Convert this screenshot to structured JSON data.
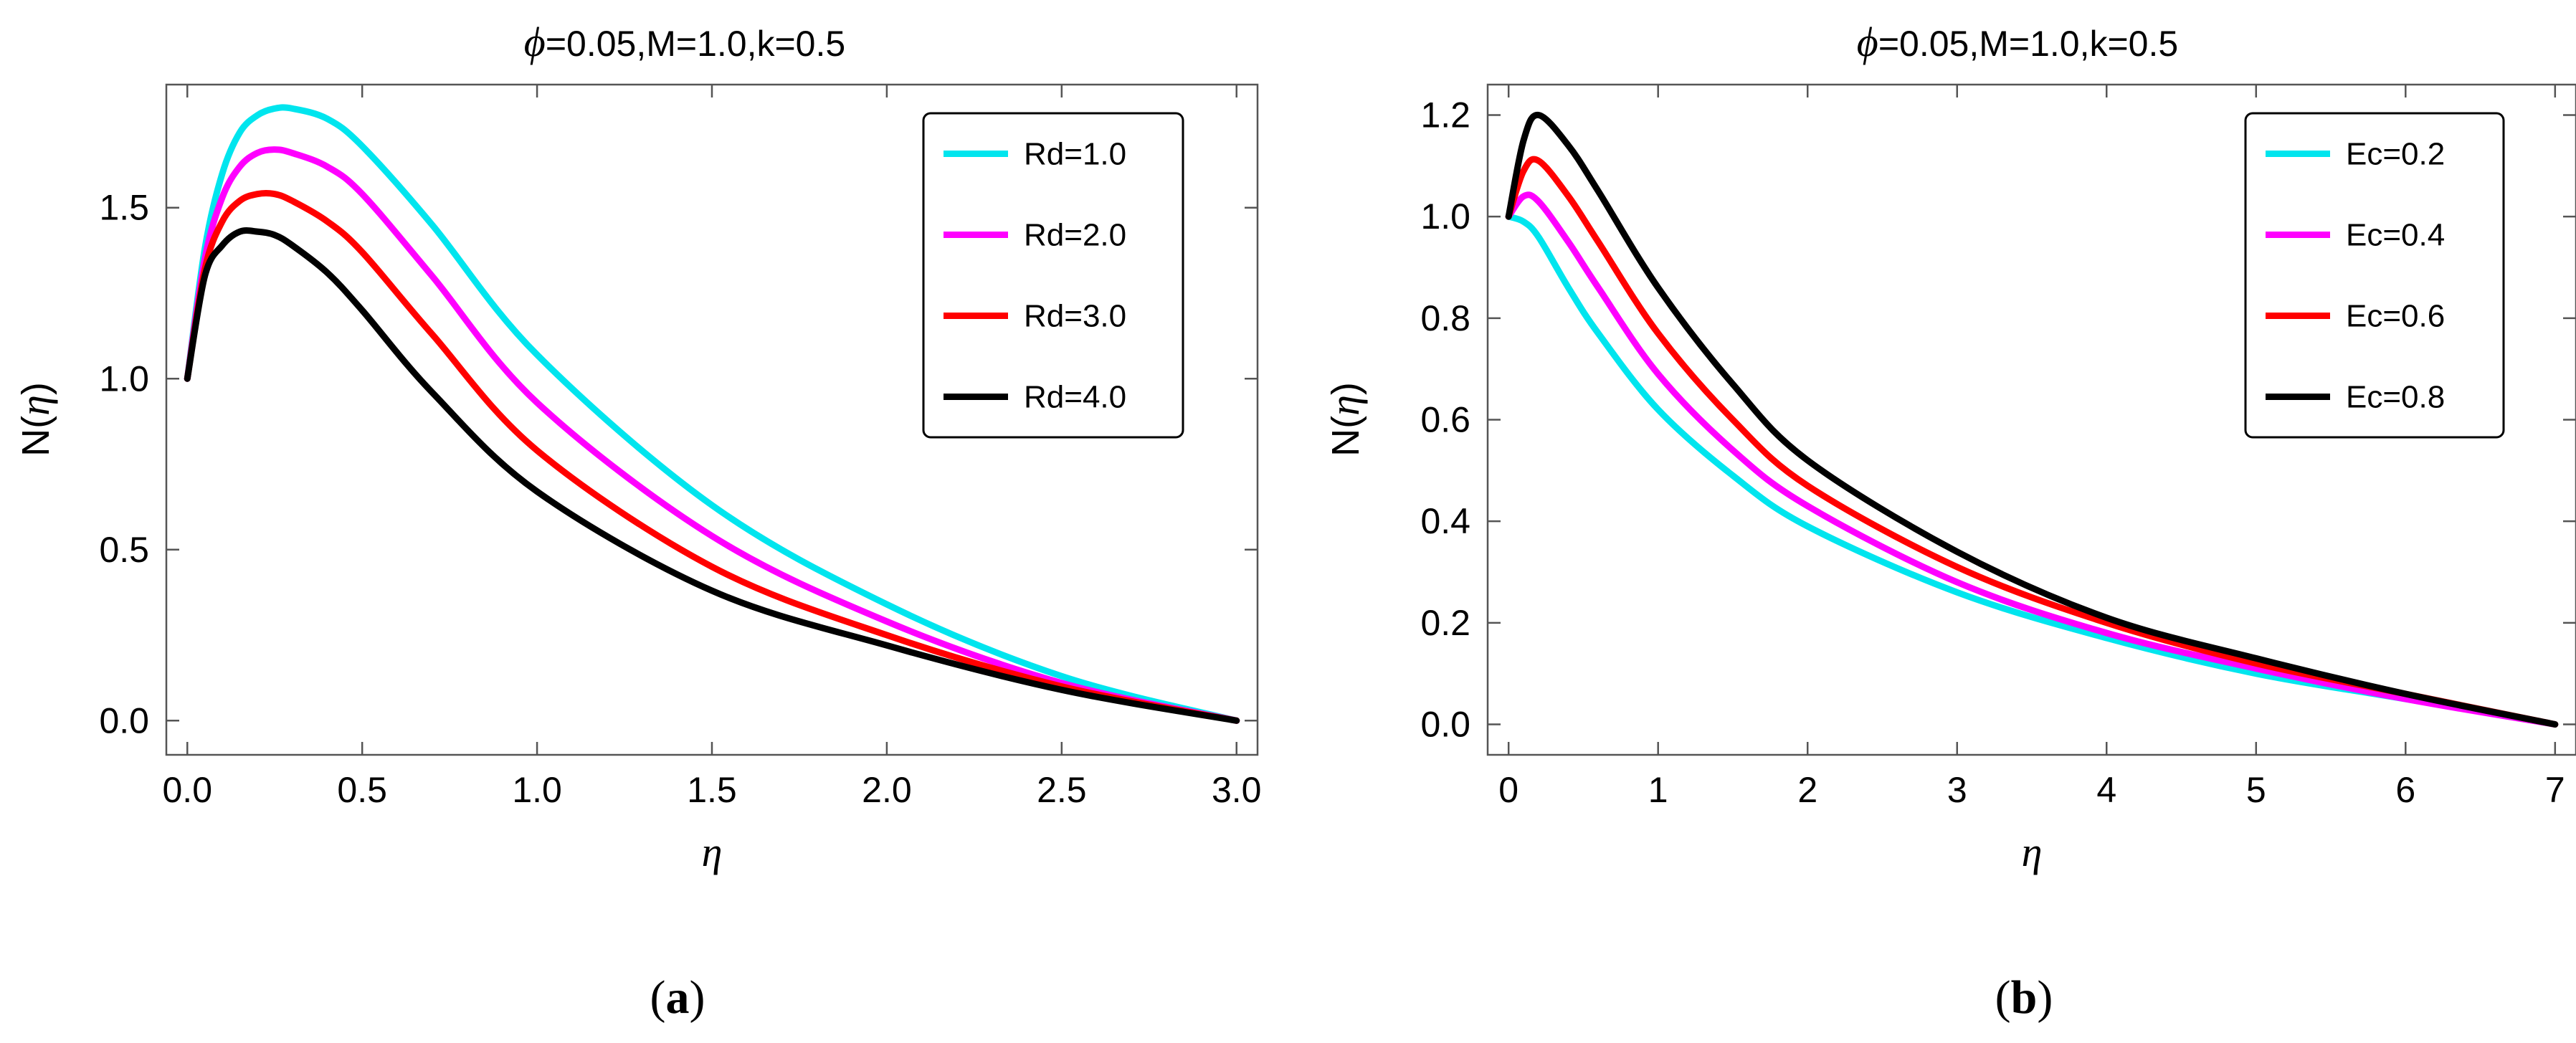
{
  "chart_data": [
    {
      "panel": "a",
      "type": "line",
      "panel_label_open": "(",
      "panel_label_letter": "a",
      "panel_label_close": ")",
      "title_symbol": "ϕ",
      "title_rest": "=0.05,M=1.0,k=0.5",
      "xlabel": "η",
      "ylabel_prefix": "N(",
      "ylabel_symbol": "η",
      "ylabel_suffix": ")",
      "xlim": [
        -0.06,
        3.06
      ],
      "ylim": [
        -0.1,
        1.86
      ],
      "xticks": [
        0.0,
        0.5,
        1.0,
        1.5,
        2.0,
        2.5,
        3.0
      ],
      "xtick_labels": [
        "0.0",
        "0.5",
        "1.0",
        "1.5",
        "2.0",
        "2.5",
        "3.0"
      ],
      "yticks": [
        0.0,
        0.5,
        1.0,
        1.5
      ],
      "ytick_labels": [
        "0.0",
        "0.5",
        "1.0",
        "1.5"
      ],
      "legend_position": "top-right",
      "series": [
        {
          "name": "Rd=1.0",
          "color": "#00e5ee",
          "x": [
            0.0,
            0.05,
            0.1,
            0.15,
            0.2,
            0.25,
            0.3,
            0.4,
            0.5,
            0.7,
            1.0,
            1.5,
            2.0,
            2.5,
            3.0
          ],
          "y": [
            1.0,
            1.38,
            1.6,
            1.72,
            1.77,
            1.79,
            1.79,
            1.76,
            1.68,
            1.45,
            1.07,
            0.63,
            0.34,
            0.13,
            0.0
          ]
        },
        {
          "name": "Rd=2.0",
          "color": "#ff00ff",
          "x": [
            0.0,
            0.05,
            0.1,
            0.15,
            0.2,
            0.25,
            0.3,
            0.4,
            0.5,
            0.7,
            1.0,
            1.5,
            2.0,
            2.5,
            3.0
          ],
          "y": [
            1.0,
            1.35,
            1.53,
            1.62,
            1.66,
            1.67,
            1.66,
            1.62,
            1.54,
            1.3,
            0.93,
            0.54,
            0.29,
            0.11,
            0.0
          ]
        },
        {
          "name": "Rd=3.0",
          "color": "#ff0000",
          "x": [
            0.0,
            0.05,
            0.1,
            0.15,
            0.2,
            0.25,
            0.3,
            0.4,
            0.5,
            0.7,
            1.0,
            1.5,
            2.0,
            2.5,
            3.0
          ],
          "y": [
            1.0,
            1.32,
            1.46,
            1.52,
            1.54,
            1.54,
            1.52,
            1.46,
            1.37,
            1.13,
            0.79,
            0.45,
            0.25,
            0.1,
            0.0
          ]
        },
        {
          "name": "Rd=4.0",
          "color": "#000000",
          "x": [
            0.0,
            0.05,
            0.1,
            0.15,
            0.2,
            0.25,
            0.3,
            0.4,
            0.5,
            0.7,
            1.0,
            1.5,
            2.0,
            2.5,
            3.0
          ],
          "y": [
            1.0,
            1.3,
            1.39,
            1.43,
            1.43,
            1.42,
            1.39,
            1.31,
            1.2,
            0.96,
            0.67,
            0.38,
            0.22,
            0.09,
            0.0
          ]
        }
      ]
    },
    {
      "panel": "b",
      "type": "line",
      "panel_label_open": "(",
      "panel_label_letter": "b",
      "panel_label_close": ")",
      "title_symbol": "ϕ",
      "title_rest": "=0.05,M=1.0,k=0.5",
      "xlabel": "η",
      "ylabel_prefix": "N(",
      "ylabel_symbol": "η",
      "ylabel_suffix": ")",
      "xlim": [
        -0.14,
        7.14
      ],
      "ylim": [
        -0.06,
        1.26
      ],
      "xticks": [
        0,
        1,
        2,
        3,
        4,
        5,
        6,
        7
      ],
      "xtick_labels": [
        "0",
        "1",
        "2",
        "3",
        "4",
        "5",
        "6",
        "7"
      ],
      "yticks": [
        0.0,
        0.2,
        0.4,
        0.6,
        0.8,
        1.0,
        1.2
      ],
      "ytick_labels": [
        "0.0",
        "0.2",
        "0.4",
        "0.6",
        "0.8",
        "1.0",
        "1.2"
      ],
      "legend_position": "top-right",
      "series": [
        {
          "name": "Ec=0.2",
          "color": "#00e5ee",
          "x": [
            0.0,
            0.1,
            0.2,
            0.4,
            0.6,
            1.0,
            1.5,
            2.0,
            3.0,
            4.0,
            5.0,
            6.0,
            7.0
          ],
          "y": [
            1.0,
            0.99,
            0.96,
            0.86,
            0.77,
            0.62,
            0.49,
            0.39,
            0.26,
            0.17,
            0.1,
            0.05,
            0.0
          ]
        },
        {
          "name": "Ec=0.4",
          "color": "#ff00ff",
          "x": [
            0.0,
            0.1,
            0.2,
            0.4,
            0.6,
            1.0,
            1.5,
            2.0,
            3.0,
            4.0,
            5.0,
            6.0,
            7.0
          ],
          "y": [
            1.0,
            1.04,
            1.03,
            0.95,
            0.86,
            0.69,
            0.54,
            0.43,
            0.28,
            0.18,
            0.11,
            0.05,
            0.0
          ]
        },
        {
          "name": "Ec=0.6",
          "color": "#ff0000",
          "x": [
            0.0,
            0.1,
            0.2,
            0.4,
            0.6,
            1.0,
            1.5,
            2.0,
            3.0,
            4.0,
            5.0,
            6.0,
            7.0
          ],
          "y": [
            1.0,
            1.09,
            1.11,
            1.04,
            0.95,
            0.77,
            0.6,
            0.47,
            0.31,
            0.2,
            0.12,
            0.06,
            0.0
          ]
        },
        {
          "name": "Ec=0.8",
          "color": "#000000",
          "x": [
            0.0,
            0.1,
            0.2,
            0.4,
            0.6,
            1.0,
            1.5,
            2.0,
            3.0,
            4.0,
            5.0,
            6.0,
            7.0
          ],
          "y": [
            1.0,
            1.15,
            1.2,
            1.14,
            1.05,
            0.86,
            0.67,
            0.52,
            0.34,
            0.21,
            0.13,
            0.06,
            0.0
          ]
        }
      ]
    }
  ]
}
